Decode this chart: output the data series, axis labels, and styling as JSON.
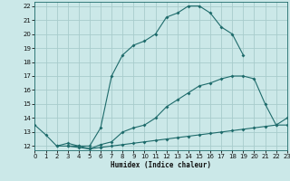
{
  "xlabel": "Humidex (Indice chaleur)",
  "bg_color": "#cbe8e8",
  "line_color": "#1e6b6b",
  "grid_color": "#a8cccc",
  "line1_x": [
    0,
    1,
    2,
    3,
    4,
    5,
    6,
    7,
    8,
    9,
    10,
    11,
    12,
    13,
    14,
    15,
    16,
    17,
    18,
    19
  ],
  "line1_y": [
    13.5,
    12.8,
    12.0,
    12.0,
    12.0,
    12.0,
    13.3,
    17.0,
    18.5,
    19.2,
    19.5,
    20.0,
    21.2,
    21.5,
    22.0,
    22.0,
    21.5,
    20.5,
    20.0,
    18.5
  ],
  "line2_x": [
    2,
    3,
    4,
    5,
    6,
    7,
    8,
    9,
    10,
    11,
    12,
    13,
    14,
    15,
    16,
    17,
    18,
    19,
    20,
    21,
    22,
    23
  ],
  "line2_y": [
    12.0,
    12.2,
    12.0,
    11.8,
    12.1,
    12.3,
    13.0,
    13.3,
    13.5,
    14.0,
    14.8,
    15.3,
    15.8,
    16.3,
    16.5,
    16.8,
    17.0,
    17.0,
    16.8,
    15.0,
    13.5,
    14.0
  ],
  "line3_x": [
    3,
    4,
    5,
    6,
    7,
    8,
    9,
    10,
    11,
    12,
    13,
    14,
    15,
    16,
    17,
    18,
    19,
    20,
    21,
    22,
    23
  ],
  "line3_y": [
    12.0,
    11.9,
    11.8,
    11.9,
    12.0,
    12.1,
    12.2,
    12.3,
    12.4,
    12.5,
    12.6,
    12.7,
    12.8,
    12.9,
    13.0,
    13.1,
    13.2,
    13.3,
    13.4,
    13.5,
    13.5
  ],
  "xlim": [
    0,
    23
  ],
  "ylim": [
    11.7,
    22.3
  ],
  "xticks": [
    0,
    1,
    2,
    3,
    4,
    5,
    6,
    7,
    8,
    9,
    10,
    11,
    12,
    13,
    14,
    15,
    16,
    17,
    18,
    19,
    20,
    21,
    22,
    23
  ],
  "yticks": [
    12,
    13,
    14,
    15,
    16,
    17,
    18,
    19,
    20,
    21,
    22
  ],
  "xlabel_fontsize": 5.5,
  "tick_fontsize": 5
}
